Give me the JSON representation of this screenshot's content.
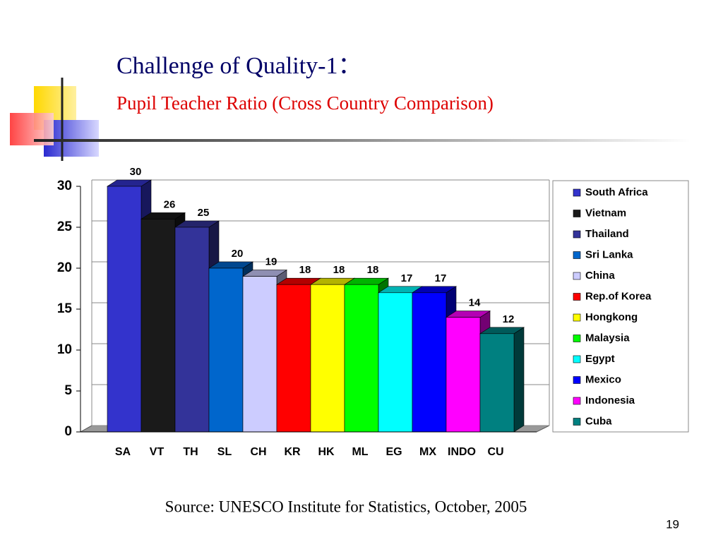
{
  "chart_data": {
    "type": "bar3d",
    "title": "Challenge of Quality-1：",
    "subtitle": "Pupil Teacher Ratio (Cross Country Comparison)",
    "categories": [
      "SA",
      "VT",
      "TH",
      "SL",
      "CH",
      "KR",
      "HK",
      "ML",
      "EG",
      "MX",
      "INDO",
      "CU"
    ],
    "values": [
      30,
      26,
      25,
      20,
      19,
      18,
      18,
      18,
      17,
      17,
      14,
      12
    ],
    "colors": [
      "#3333cc",
      "#1a1a1a",
      "#333399",
      "#0066cc",
      "#ccccff",
      "#ff0000",
      "#ffff00",
      "#00ff00",
      "#00ffff",
      "#0000ff",
      "#ff00ff",
      "#008080"
    ],
    "legend": [
      "South Africa",
      "Vietnam",
      "Thailand",
      "Sri Lanka",
      "China",
      "Rep.of Korea",
      "Hongkong",
      "Malaysia",
      "Egypt",
      "Mexico",
      "Indonesia",
      "Cuba"
    ],
    "ylim": [
      0,
      30
    ],
    "yticks": [
      0,
      5,
      10,
      15,
      20,
      25,
      30
    ],
    "grid": true,
    "source": "Source:  UNESCO Institute for Statistics, October, 2005",
    "page_number": "19"
  }
}
